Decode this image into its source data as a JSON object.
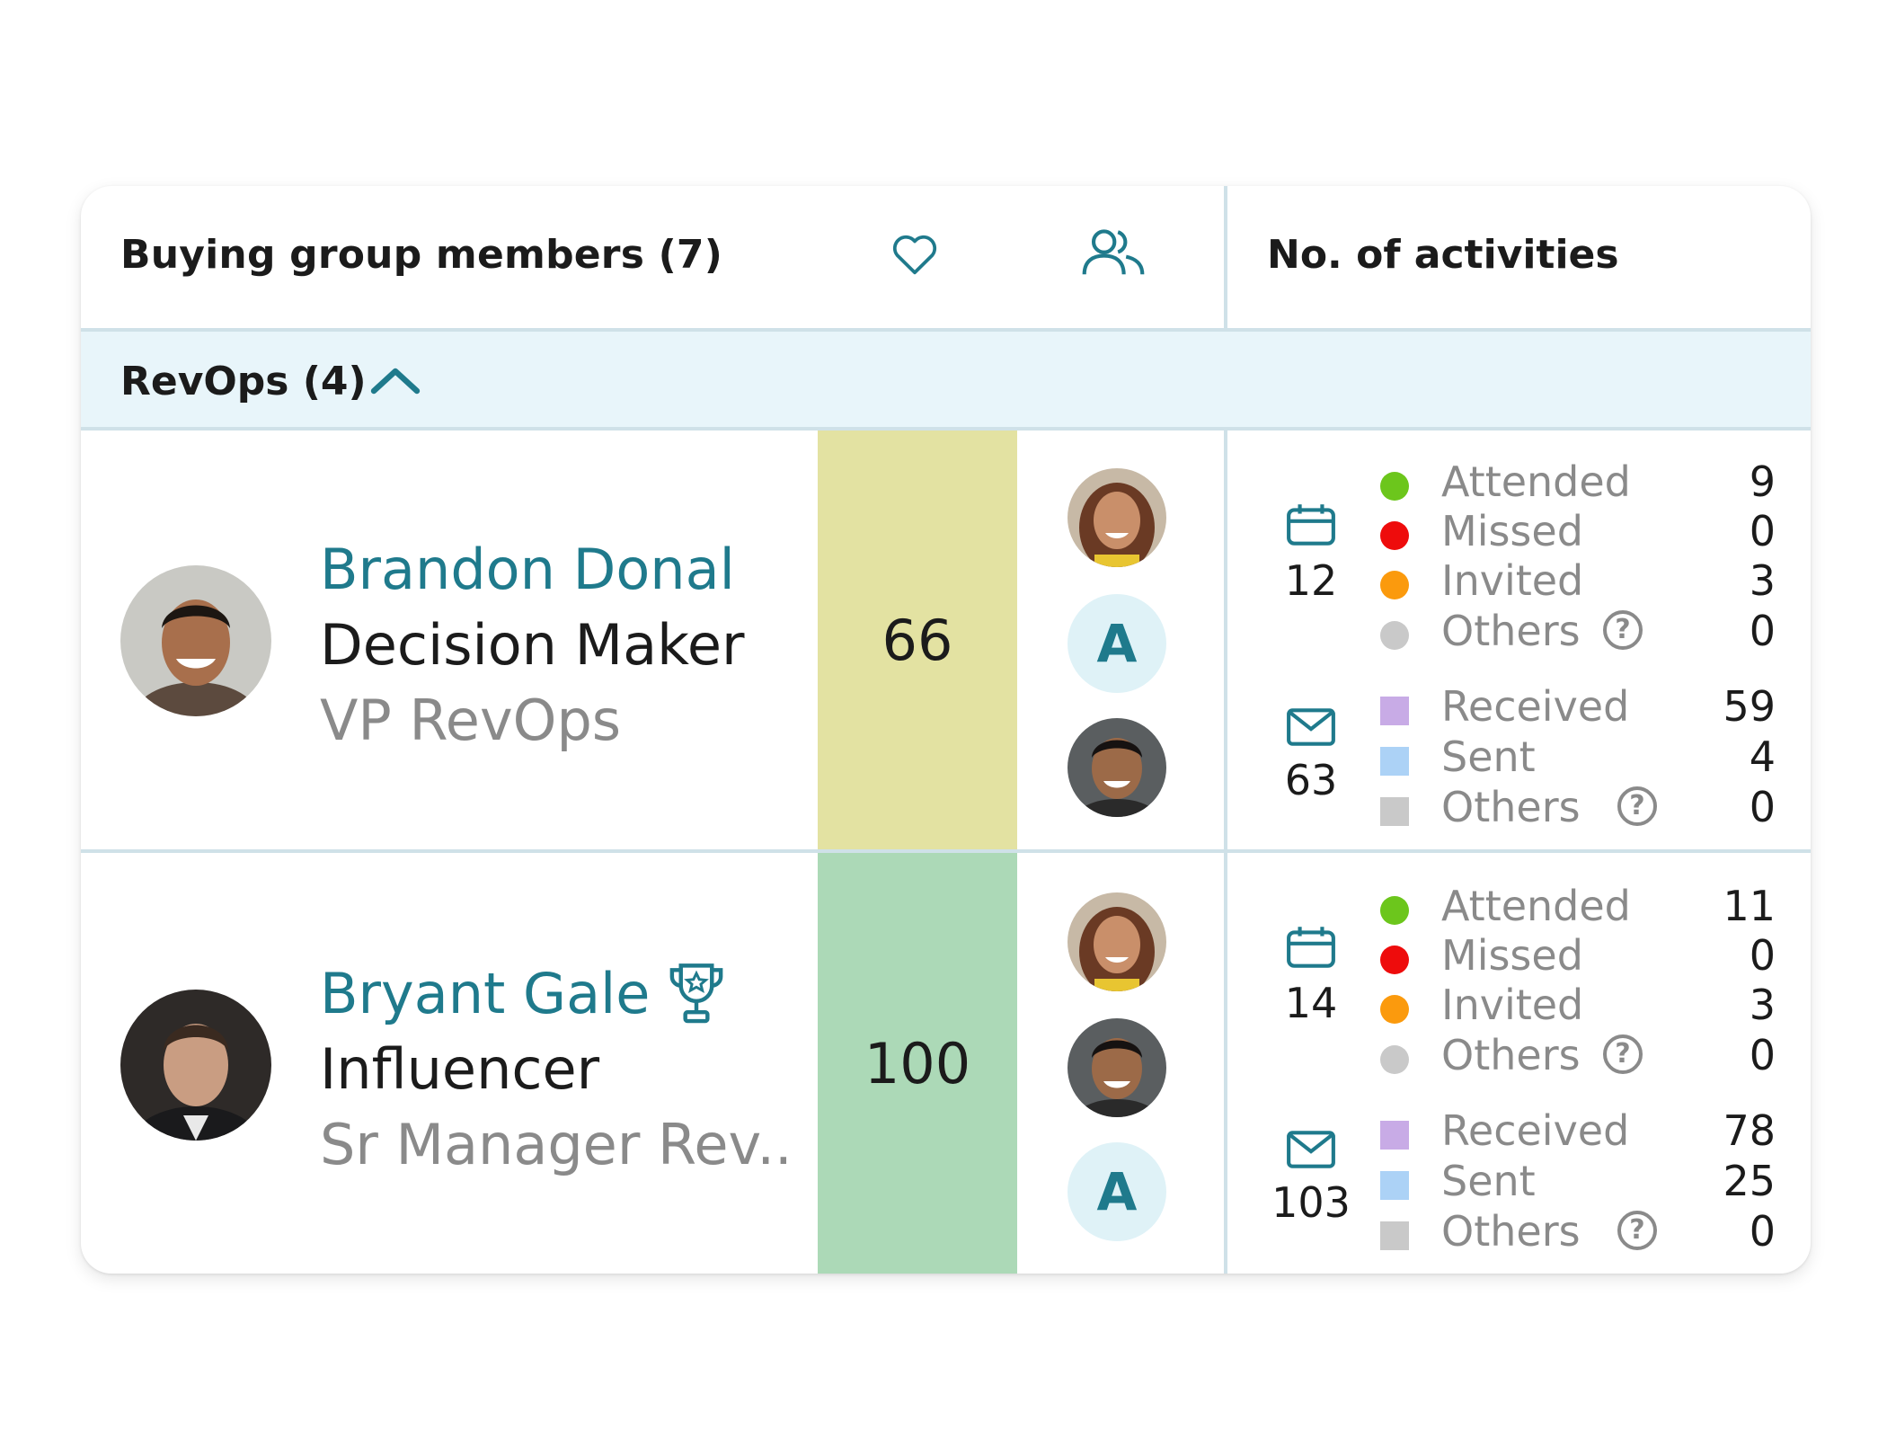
{
  "header": {
    "title": "Buying group members (7)",
    "activities_label": "No. of activities",
    "heart_icon": "heart-icon",
    "people_icon": "people-icon"
  },
  "group": {
    "label": "RevOps (4)",
    "expanded": true
  },
  "colors": {
    "accent": "#1f7a8c",
    "score_medium": "#e3e2a2",
    "score_high": "#acd9b7",
    "attended": "#6cc61c",
    "missed": "#ee0c0c",
    "invited": "#fb9a0d",
    "others": "#c9c9c9",
    "received": "#c8abe6",
    "sent": "#acd2f6",
    "email_others": "#c9c9c9"
  },
  "members": [
    {
      "name": "Brandon Donal",
      "role": "Decision Maker",
      "title": "VP RevOps",
      "score": "66",
      "contacts": [
        {
          "type": "photo"
        },
        {
          "type": "letter",
          "letter": "A"
        },
        {
          "type": "photo"
        }
      ],
      "meetings": {
        "count": "12",
        "items": [
          {
            "label": "Attended",
            "value": "9"
          },
          {
            "label": "Missed",
            "value": "0"
          },
          {
            "label": "Invited",
            "value": "3"
          },
          {
            "label": "Others",
            "value": "0",
            "help": "?"
          }
        ]
      },
      "emails": {
        "count": "63",
        "items": [
          {
            "label": "Received",
            "value": "59"
          },
          {
            "label": "Sent",
            "value": "4"
          },
          {
            "label": "Others",
            "value": "0",
            "help": "?"
          }
        ]
      }
    },
    {
      "name": "Bryant Gale",
      "badge_icon": "trophy-icon",
      "role": "Influencer",
      "title": "Sr Manager Rev..",
      "score": "100",
      "contacts": [
        {
          "type": "photo"
        },
        {
          "type": "photo"
        },
        {
          "type": "letter",
          "letter": "A"
        }
      ],
      "meetings": {
        "count": "14",
        "items": [
          {
            "label": "Attended",
            "value": "11"
          },
          {
            "label": "Missed",
            "value": "0"
          },
          {
            "label": "Invited",
            "value": "3"
          },
          {
            "label": "Others",
            "value": "0",
            "help": "?"
          }
        ]
      },
      "emails": {
        "count": "103",
        "items": [
          {
            "label": "Received",
            "value": "78"
          },
          {
            "label": "Sent",
            "value": "25"
          },
          {
            "label": "Others",
            "value": "0",
            "help": "?"
          }
        ]
      }
    }
  ]
}
